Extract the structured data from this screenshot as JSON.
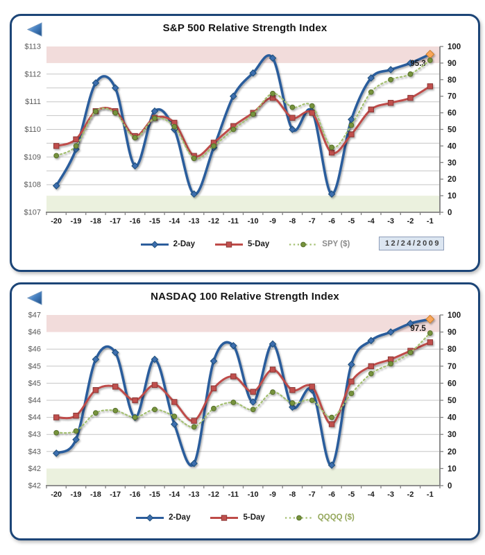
{
  "page": {
    "background": "#FFFFFF",
    "panel_border_color": "#1C4577"
  },
  "chart_data": [
    {
      "id": "sp500",
      "type": "line",
      "title": "S&P 500 Relative Strength Index",
      "date_label": "12/24/2009",
      "x_labels": [
        "-20",
        "-19",
        "-18",
        "-17",
        "-16",
        "-15",
        "-14",
        "-13",
        "-12",
        "-11",
        "-10",
        "-9",
        "-8",
        "-7",
        "-6",
        "-5",
        "-4",
        "-3",
        "-2",
        "-1"
      ],
      "left_axis": {
        "unit": "$",
        "min": 107,
        "max": 113,
        "labels": [
          "$113",
          "$112",
          "$111",
          "$110",
          "$109",
          "$108",
          "$107"
        ],
        "values": [
          113,
          112,
          111,
          110,
          109,
          108,
          107
        ]
      },
      "right_axis": {
        "min": 0,
        "max": 100,
        "labels": [
          "100",
          "90",
          "80",
          "70",
          "60",
          "50",
          "40",
          "30",
          "20",
          "10",
          "0"
        ],
        "values": [
          100,
          90,
          80,
          70,
          60,
          50,
          40,
          30,
          20,
          10,
          0
        ]
      },
      "bands": {
        "overbought": {
          "rsi_from": 90,
          "rsi_to": 100,
          "color": "#F2DCDB"
        },
        "oversold": {
          "rsi_from": 0,
          "rsi_to": 10,
          "color": "#EBF1DE"
        }
      },
      "grid_color": "#C6C6C6",
      "axis_color": "#808080",
      "series": [
        {
          "name": "2-Day",
          "axis": "right",
          "style": "smooth",
          "line_color": "#2C5D9C",
          "marker": "diamond",
          "marker_fill": "#3C6EAE",
          "marker_stroke": "#1F4E79",
          "values": [
            16,
            38,
            78,
            75,
            28,
            61,
            50,
            11,
            39,
            70,
            84,
            93,
            50,
            61,
            11,
            56,
            81,
            86,
            90,
            95.3
          ],
          "last_point": {
            "fill": "#F9A65A",
            "stroke": "#C97F2E",
            "label": "95.3"
          }
        },
        {
          "name": "5-Day",
          "axis": "right",
          "style": "smooth",
          "line_color": "#BE4B48",
          "marker": "square",
          "marker_fill": "#C0504D",
          "marker_stroke": "#8C3836",
          "values": [
            40,
            44,
            61,
            61,
            46,
            57,
            54,
            34,
            42,
            52,
            60,
            69,
            57,
            60,
            36,
            47,
            62,
            66,
            69,
            76
          ]
        },
        {
          "name": "SPY ($)",
          "axis": "left",
          "style": "dotted",
          "line_color": "#A3BF70",
          "marker": "circle",
          "marker_fill": "#77933C",
          "marker_stroke": "#56702C",
          "label_color": "#8C8C8C",
          "values": [
            109.05,
            109.4,
            110.65,
            110.6,
            109.7,
            110.4,
            110.1,
            108.95,
            109.4,
            110.0,
            110.55,
            111.3,
            110.8,
            110.85,
            109.35,
            110.15,
            111.35,
            111.8,
            112.0,
            112.5
          ]
        }
      ]
    },
    {
      "id": "nasdaq",
      "type": "line",
      "title": "NASDAQ 100 Relative Strength Index",
      "x_labels": [
        "-20",
        "-19",
        "-18",
        "-17",
        "-16",
        "-15",
        "-14",
        "-13",
        "-12",
        "-11",
        "-10",
        "-9",
        "-8",
        "-7",
        "-6",
        "-5",
        "-4",
        "-3",
        "-2",
        "-1"
      ],
      "left_axis": {
        "unit": "$",
        "min": 42,
        "max": 47,
        "labels": [
          "$47",
          "$46",
          "$46",
          "$45",
          "$45",
          "$44",
          "$44",
          "$43",
          "$43",
          "$42",
          "$42"
        ],
        "values": [
          47,
          46.5,
          46,
          45.5,
          45,
          44.5,
          44,
          43.5,
          43,
          42.5,
          42
        ]
      },
      "right_axis": {
        "min": 0,
        "max": 100,
        "labels": [
          "100",
          "90",
          "80",
          "70",
          "60",
          "50",
          "40",
          "30",
          "20",
          "10",
          "0"
        ],
        "values": [
          100,
          90,
          80,
          70,
          60,
          50,
          40,
          30,
          20,
          10,
          0
        ]
      },
      "bands": {
        "overbought": {
          "rsi_from": 90,
          "rsi_to": 100,
          "color": "#F2DCDB"
        },
        "oversold": {
          "rsi_from": 0,
          "rsi_to": 10,
          "color": "#EBF1DE"
        }
      },
      "grid_color": "#C6C6C6",
      "axis_color": "#808080",
      "series": [
        {
          "name": "2-Day",
          "axis": "right",
          "style": "smooth",
          "line_color": "#2C5D9C",
          "marker": "diamond",
          "marker_fill": "#3C6EAE",
          "marker_stroke": "#1F4E79",
          "values": [
            19,
            27,
            74,
            78,
            40,
            74,
            36,
            13,
            73,
            82,
            49,
            83,
            46,
            56,
            12,
            71,
            85,
            90,
            95,
            97.5
          ],
          "last_point": {
            "fill": "#F9A65A",
            "stroke": "#C97F2E",
            "label": "97.5"
          }
        },
        {
          "name": "5-Day",
          "axis": "right",
          "style": "smooth",
          "line_color": "#BE4B48",
          "marker": "square",
          "marker_fill": "#C0504D",
          "marker_stroke": "#8C3836",
          "values": [
            40,
            41,
            56,
            58,
            50,
            59,
            49,
            38,
            57,
            64,
            55,
            68,
            56,
            58,
            36,
            61,
            70,
            74,
            79,
            84
          ]
        },
        {
          "name": "QQQQ ($)",
          "axis": "left",
          "style": "dotted",
          "line_color": "#A3BF70",
          "marker": "circle",
          "marker_fill": "#77933C",
          "marker_stroke": "#56702C",
          "label_color": "#94A75B",
          "values": [
            43.55,
            43.6,
            44.13,
            44.2,
            44.0,
            44.23,
            44.03,
            43.72,
            44.26,
            44.44,
            44.23,
            44.74,
            44.42,
            44.5,
            44.0,
            44.7,
            45.28,
            45.57,
            45.9,
            46.47
          ]
        }
      ]
    }
  ]
}
